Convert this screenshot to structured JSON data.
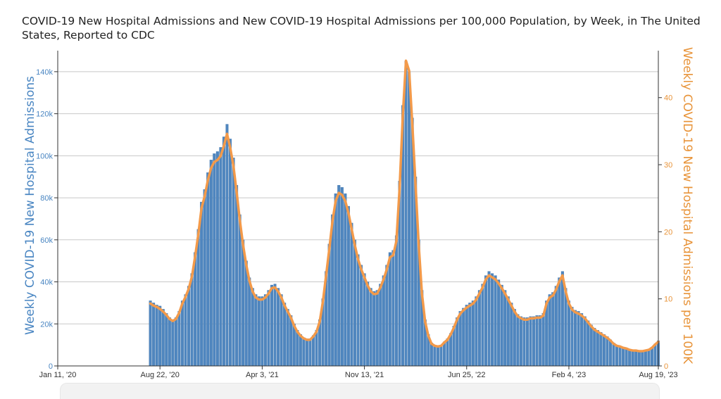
{
  "title": "COVID-19 New Hospital Admissions and New COVID-19 Hospital Admissions per 100,000 Population, by Week, in The United States, Reported to CDC",
  "colors": {
    "bars": "#4f86bf",
    "bar_edge": "#3a6fa6",
    "line": "#f39a4a",
    "left_axis": "#4a86c2",
    "right_axis": "#e8943a",
    "grid": "#c8c8c8"
  },
  "chart_data": {
    "type": "bar",
    "ylabel": "Weekly COVID-19 New Hospital Admissions",
    "y2label": "Weekly COVID-19 New Hospital Admissions per 100K",
    "ylim": [
      0,
      150000
    ],
    "y2lim": [
      0,
      47
    ],
    "yticks": [
      "0",
      "20k",
      "40k",
      "60k",
      "80k",
      "100k",
      "120k",
      "140k"
    ],
    "y2ticks": [
      "0",
      "10",
      "20",
      "30",
      "40"
    ],
    "xticks": [
      "Jan 11, '20",
      "Aug 22, '20",
      "Apr 3, '21",
      "Nov 13, '21",
      "Jun 25, '22",
      "Feb 4, '23",
      "Aug 19, '23"
    ],
    "x_start": "2020-01-11",
    "x_end": "2023-08-19",
    "data_start": "2020-08-01",
    "series": [
      {
        "name": "Weekly COVID-19 New Hospital Admissions",
        "type": "bar",
        "values": [
          31000,
          30000,
          29000,
          28500,
          27000,
          25000,
          23000,
          22000,
          23000,
          26000,
          31000,
          34000,
          38000,
          44000,
          54000,
          65000,
          78000,
          84000,
          92000,
          98000,
          101000,
          102000,
          104000,
          109000,
          115000,
          108000,
          99000,
          86000,
          72000,
          60000,
          50000,
          42000,
          37000,
          34000,
          33000,
          33000,
          34000,
          36000,
          38500,
          39000,
          37000,
          34000,
          30000,
          27000,
          24000,
          20000,
          17000,
          15000,
          13500,
          13000,
          13000,
          14500,
          17000,
          22000,
          32000,
          45000,
          58000,
          72000,
          82000,
          86000,
          85000,
          82000,
          76000,
          68000,
          60000,
          53000,
          48000,
          44000,
          40000,
          37000,
          35500,
          36000,
          39000,
          43000,
          48000,
          54000,
          55000,
          62000,
          88000,
          124000,
          145000,
          140000,
          118000,
          90000,
          60000,
          36000,
          22000,
          15000,
          11000,
          10000,
          9500,
          10000,
          11500,
          13000,
          15500,
          19000,
          23000,
          26000,
          27500,
          29000,
          30000,
          31000,
          33000,
          36000,
          39000,
          43000,
          45000,
          44000,
          43000,
          41000,
          38500,
          36000,
          33000,
          30000,
          27000,
          24500,
          23500,
          23000,
          23000,
          23500,
          23500,
          24000,
          24000,
          25000,
          31000,
          34000,
          35000,
          38000,
          42000,
          45000,
          37000,
          31000,
          28000,
          26500,
          26000,
          25000,
          23500,
          21500,
          19500,
          18000,
          17000,
          16000,
          15000,
          14000,
          12500,
          11000,
          10000,
          9500,
          9000,
          8500,
          8000,
          7800,
          7500,
          7300,
          7200,
          7500,
          8000,
          9000,
          10500,
          12000
        ]
      },
      {
        "name": "Weekly COVID-19 New Hospital Admissions per 100K",
        "type": "line",
        "axis": "right",
        "values": [
          9.3,
          9.0,
          8.8,
          8.5,
          8.1,
          7.6,
          7.0,
          6.7,
          7.0,
          7.9,
          9.3,
          10.3,
          11.5,
          13.3,
          16.3,
          19.6,
          23.5,
          25.3,
          27.7,
          29.5,
          30.4,
          30.7,
          31.3,
          32.8,
          34.6,
          32.5,
          29.8,
          25.9,
          21.7,
          18.1,
          15.1,
          12.7,
          11.1,
          10.2,
          9.9,
          9.9,
          10.2,
          10.8,
          11.6,
          11.7,
          11.1,
          10.2,
          9.0,
          8.1,
          7.2,
          6.0,
          5.1,
          4.5,
          4.1,
          3.9,
          3.9,
          4.4,
          5.1,
          6.6,
          9.6,
          13.5,
          17.4,
          21.6,
          24.6,
          25.8,
          25.5,
          24.6,
          22.8,
          20.4,
          18.0,
          15.9,
          14.4,
          13.2,
          12.0,
          11.1,
          10.7,
          10.8,
          11.7,
          12.9,
          14.4,
          16.2,
          16.5,
          18.6,
          26.4,
          37.2,
          45.5,
          44.0,
          36.0,
          27.0,
          18.0,
          10.8,
          6.6,
          4.5,
          3.3,
          3.0,
          2.9,
          3.0,
          3.5,
          3.9,
          4.7,
          5.7,
          6.9,
          7.8,
          8.3,
          8.7,
          9.0,
          9.3,
          9.9,
          10.8,
          11.7,
          12.9,
          13.5,
          13.2,
          12.9,
          12.3,
          11.6,
          10.8,
          9.9,
          9.0,
          8.1,
          7.4,
          7.1,
          6.9,
          6.9,
          7.1,
          7.1,
          7.2,
          7.2,
          7.5,
          9.3,
          10.2,
          10.5,
          11.4,
          12.6,
          13.5,
          11.1,
          9.3,
          8.4,
          8.0,
          7.8,
          7.5,
          7.1,
          6.5,
          5.9,
          5.4,
          5.1,
          4.8,
          4.5,
          4.2,
          3.8,
          3.3,
          3.0,
          2.9,
          2.7,
          2.6,
          2.4,
          2.3,
          2.3,
          2.2,
          2.2,
          2.3,
          2.4,
          2.7,
          3.2,
          3.6
        ]
      }
    ]
  }
}
